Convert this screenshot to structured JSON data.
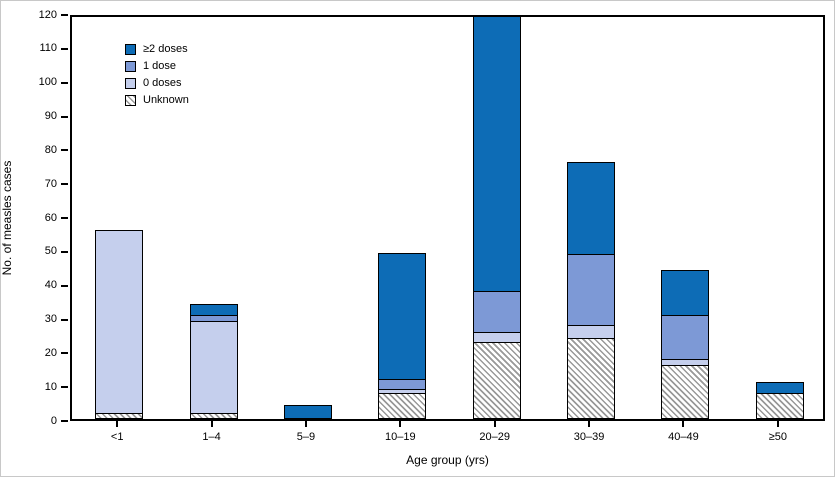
{
  "chart_data": {
    "type": "bar",
    "stacked": true,
    "xlabel": "Age group (yrs)",
    "ylabel": "No. of measles cases",
    "ylim": [
      0,
      120
    ],
    "ytick_step": 10,
    "grid": false,
    "legend_position": "top-left-inside",
    "categories": [
      "<1",
      "1–4",
      "5–9",
      "10–19",
      "20–29",
      "30–39",
      "40–49",
      "≥50"
    ],
    "series": [
      {
        "name": "≥2 doses",
        "color": "#0d6cb6",
        "pattern": "solid",
        "values": [
          0,
          3,
          4,
          37,
          81,
          27,
          13,
          3
        ]
      },
      {
        "name": "1 dose",
        "color": "#7d99d6",
        "pattern": "solid",
        "values": [
          0,
          2,
          0,
          3,
          12,
          21,
          13,
          0
        ]
      },
      {
        "name": "0 doses",
        "color": "#c5cfed",
        "pattern": "solid",
        "values": [
          54,
          27,
          0,
          1,
          3,
          4,
          2,
          0
        ]
      },
      {
        "name": "Unknown",
        "color": "#ffffff",
        "pattern": "diagonal-hatch",
        "hatch_color": "#999999",
        "values": [
          2,
          2,
          0,
          8,
          23,
          24,
          16,
          8
        ]
      }
    ],
    "stack_order_bottom_to_top": [
      "Unknown",
      "0 doses",
      "1 dose",
      "≥2 doses"
    ],
    "totals": [
      56,
      34,
      4,
      49,
      119,
      76,
      44,
      11
    ]
  }
}
